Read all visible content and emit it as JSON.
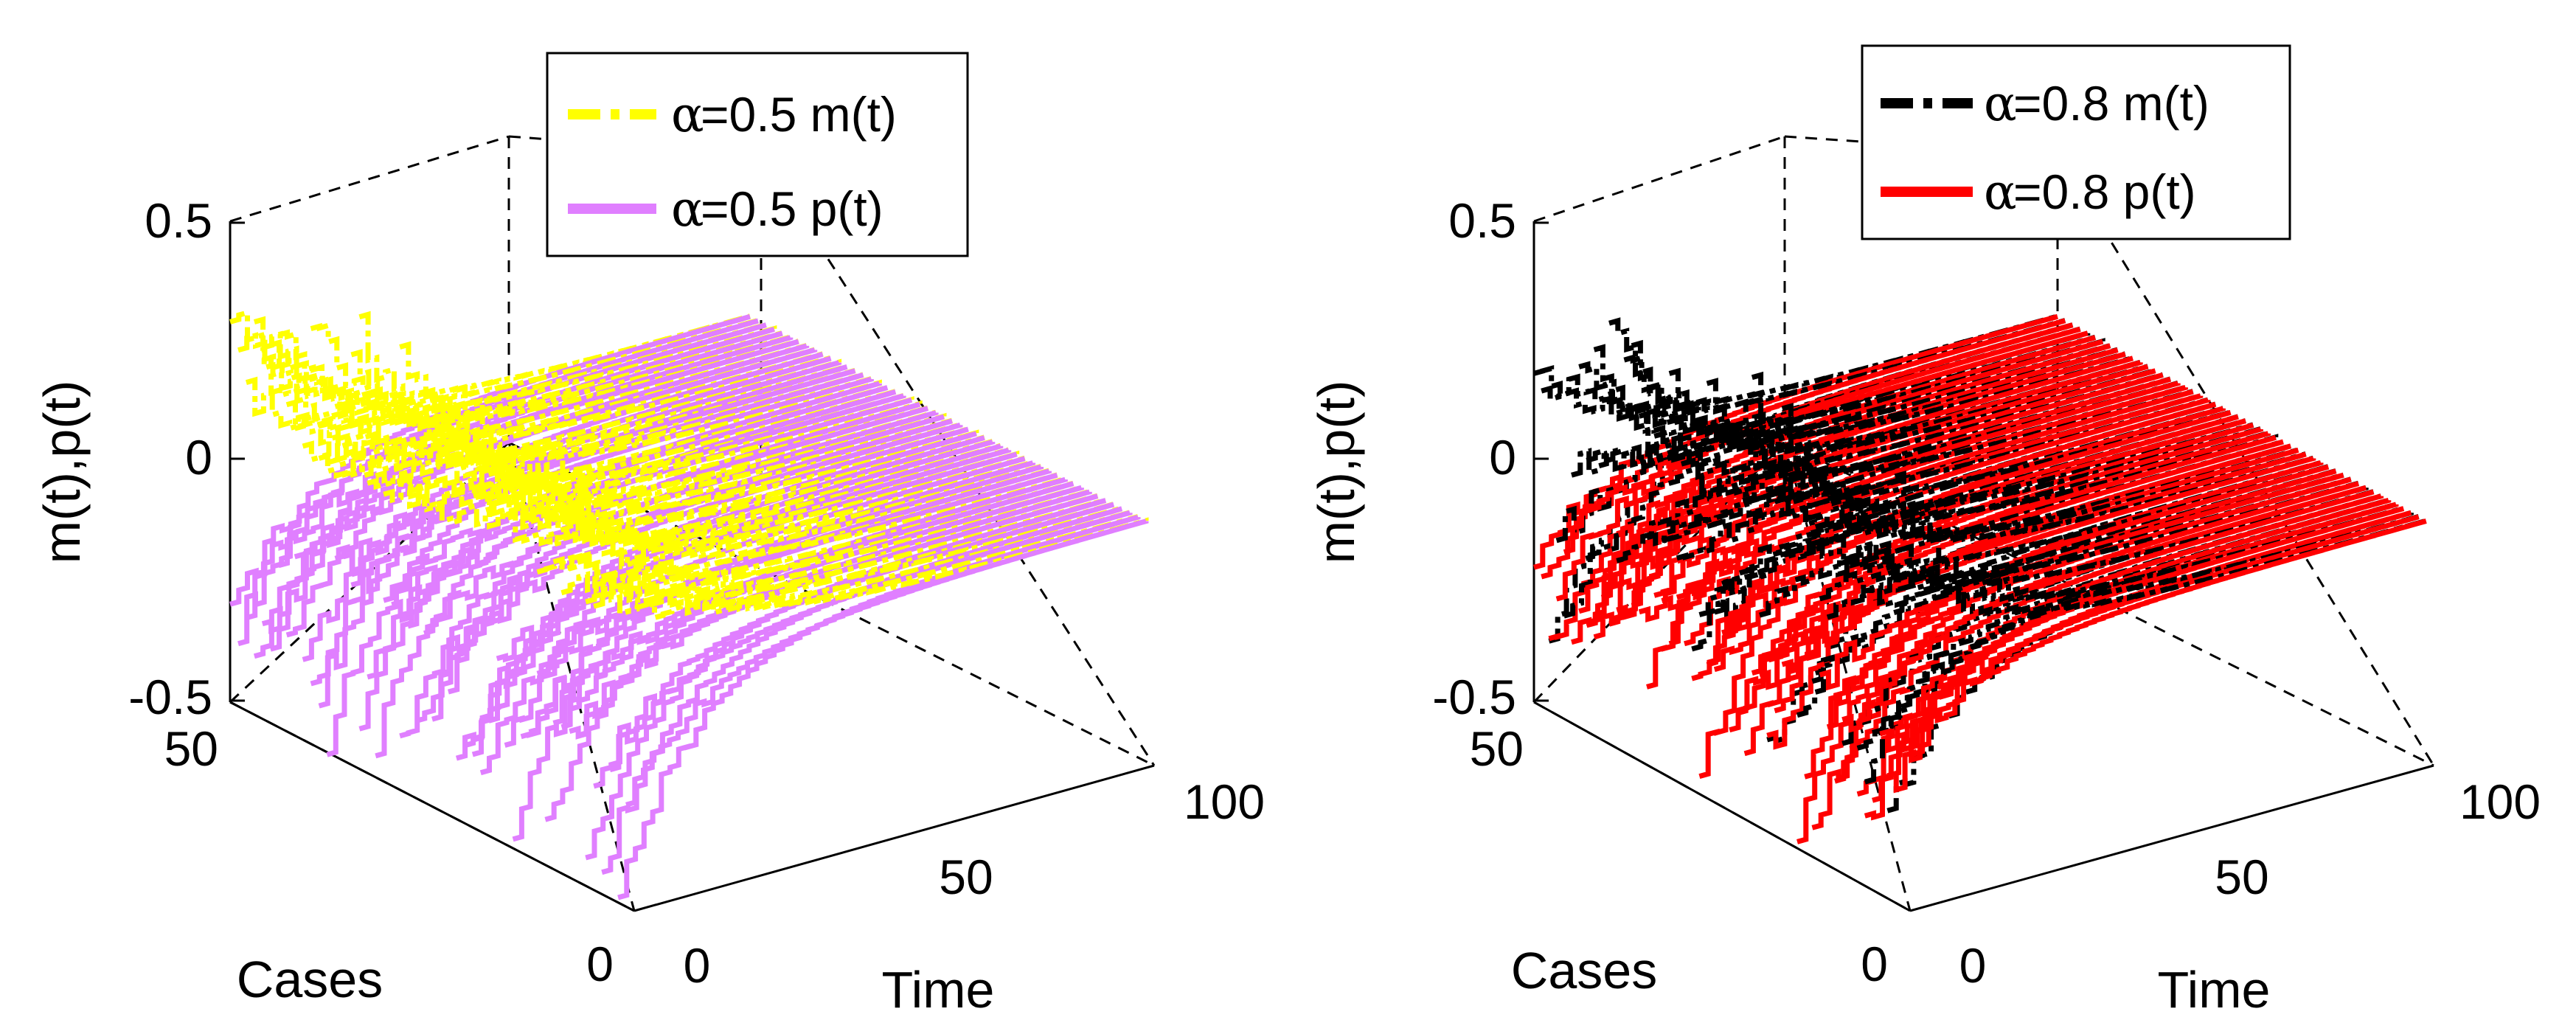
{
  "chart_data": [
    {
      "type": "line3d",
      "title": "",
      "zlabel": "m(t),p(t)",
      "xlabel": "Time",
      "ylabel": "Cases",
      "xlim": [
        0,
        100
      ],
      "ylim": [
        0,
        50
      ],
      "zlim": [
        -0.5,
        0.5
      ],
      "x_ticks": [
        "0",
        "50",
        "100"
      ],
      "y_ticks": [
        "0",
        "50"
      ],
      "z_ticks": [
        "-0.5",
        "0",
        "0.5"
      ],
      "legend_position": "top",
      "legend": [
        {
          "symbol": "α",
          "label": "=0.5 m(t)",
          "color": "#ffff00",
          "style": "dash-dot"
        },
        {
          "symbol": "α",
          "label": "=0.5 p(t)",
          "color": "#e07fff",
          "style": "solid"
        }
      ],
      "alpha": 0.5,
      "num_cases": 50,
      "time_range": [
        0,
        100
      ],
      "m_initial_range": [
        0.1,
        0.4
      ],
      "p_initial_range": [
        -0.48,
        -0.1
      ],
      "steady_state": 0.0,
      "series": [
        {
          "name": "m(t)",
          "color": "#ffff00"
        },
        {
          "name": "p(t)",
          "color": "#e07fff"
        }
      ]
    },
    {
      "type": "line3d",
      "title": "",
      "zlabel": "m(t),p(t)",
      "xlabel": "Time",
      "ylabel": "Cases",
      "xlim": [
        0,
        100
      ],
      "ylim": [
        0,
        50
      ],
      "zlim": [
        -0.5,
        0.5
      ],
      "x_ticks": [
        "0",
        "50",
        "100"
      ],
      "y_ticks": [
        "0",
        "50"
      ],
      "z_ticks": [
        "-0.5",
        "0",
        "0.5"
      ],
      "legend_position": "top",
      "legend": [
        {
          "symbol": "α",
          "label": "=0.8 m(t)",
          "color": "#000000",
          "style": "dash-dot"
        },
        {
          "symbol": "α",
          "label": "=0.8 p(t)",
          "color": "#ff0000",
          "style": "solid"
        }
      ],
      "alpha": 0.8,
      "num_cases": 50,
      "time_range": [
        0,
        100
      ],
      "m_initial_range": [
        -0.35,
        0.4
      ],
      "p_initial_range": [
        -0.48,
        -0.1
      ],
      "steady_state": 0.0,
      "series": [
        {
          "name": "m(t)",
          "color": "#000000"
        },
        {
          "name": "p(t)",
          "color": "#ff0000"
        }
      ]
    }
  ]
}
